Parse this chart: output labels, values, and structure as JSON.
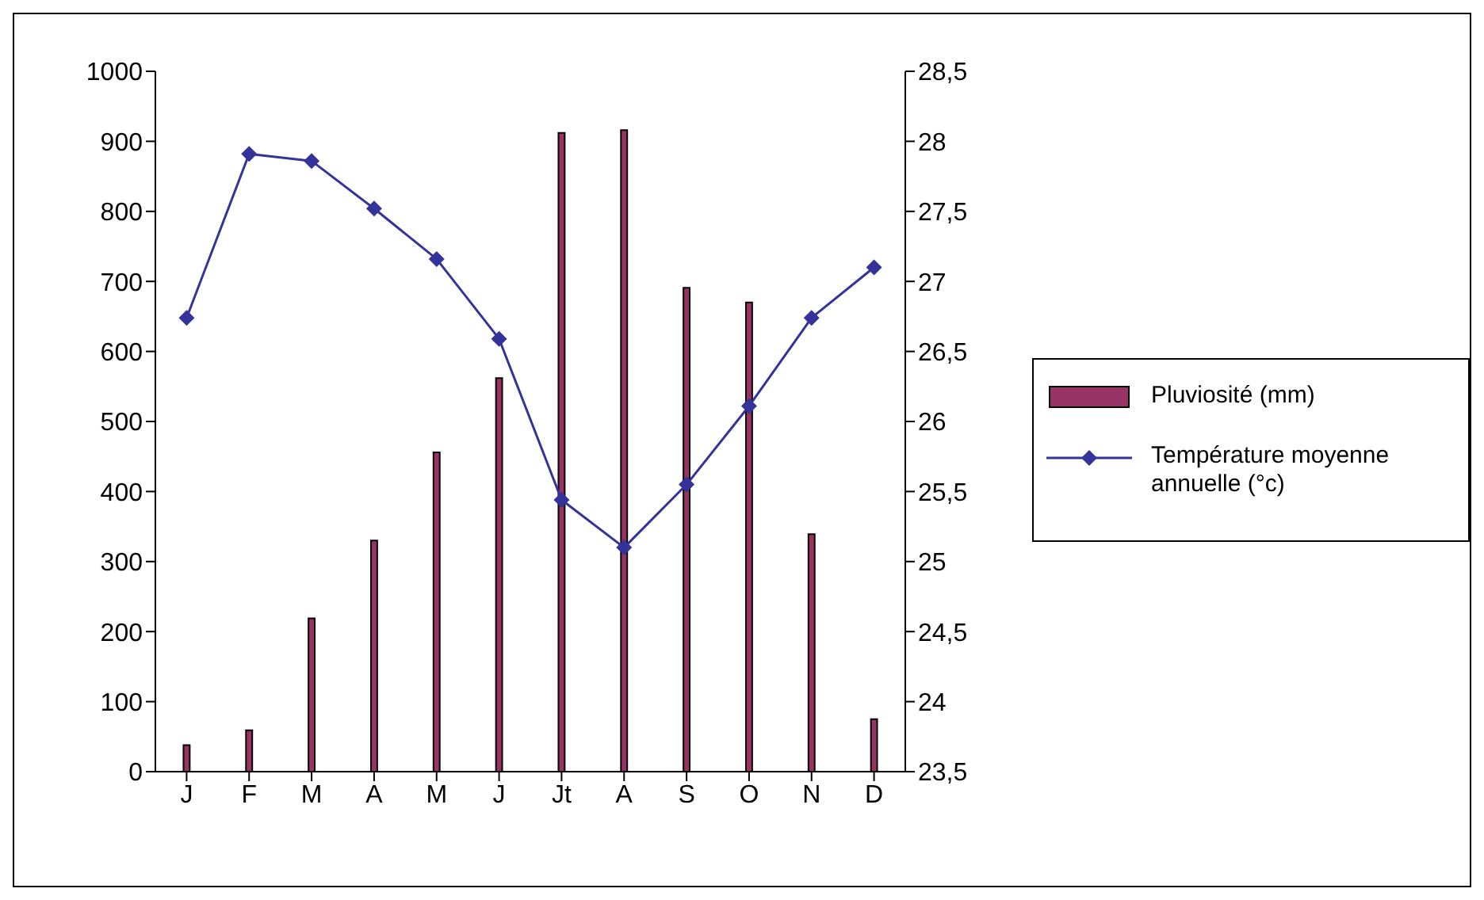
{
  "chart_data": {
    "type": "bar",
    "categories": [
      "J",
      "F",
      "M",
      "A",
      "M",
      "J",
      "Jt",
      "A",
      "S",
      "O",
      "N",
      "D"
    ],
    "series": [
      {
        "name": "Pluviosité (mm)",
        "color": "#993366",
        "values": [
          38,
          59,
          219,
          330,
          456,
          562,
          912,
          916,
          691,
          670,
          339,
          75
        ]
      },
      {
        "name": "Température moyenne annuelle (°c)",
        "type": "line",
        "axis": "y2",
        "color": "#333399",
        "marker": "diamond",
        "values": [
          26.74,
          27.91,
          27.86,
          27.52,
          27.16,
          26.59,
          25.44,
          25.1,
          25.55,
          26.11,
          26.74,
          27.1
        ]
      }
    ],
    "ylim": [
      0,
      1000
    ],
    "yticks": [
      0,
      100,
      200,
      300,
      400,
      500,
      600,
      700,
      800,
      900,
      1000
    ],
    "y2lim": [
      23.5,
      28.5
    ],
    "y2ticks": [
      {
        "value": 23.5,
        "label": "23,5"
      },
      24,
      {
        "value": 24.5,
        "label": "24,5"
      },
      25,
      {
        "value": 25.5,
        "label": "25,5"
      },
      26,
      {
        "value": 26.5,
        "label": "26,5"
      },
      27,
      {
        "value": 27.5,
        "label": "27,5"
      },
      28,
      {
        "value": 28.5,
        "label": "28,5"
      }
    ],
    "grid": false,
    "legend": "right"
  }
}
